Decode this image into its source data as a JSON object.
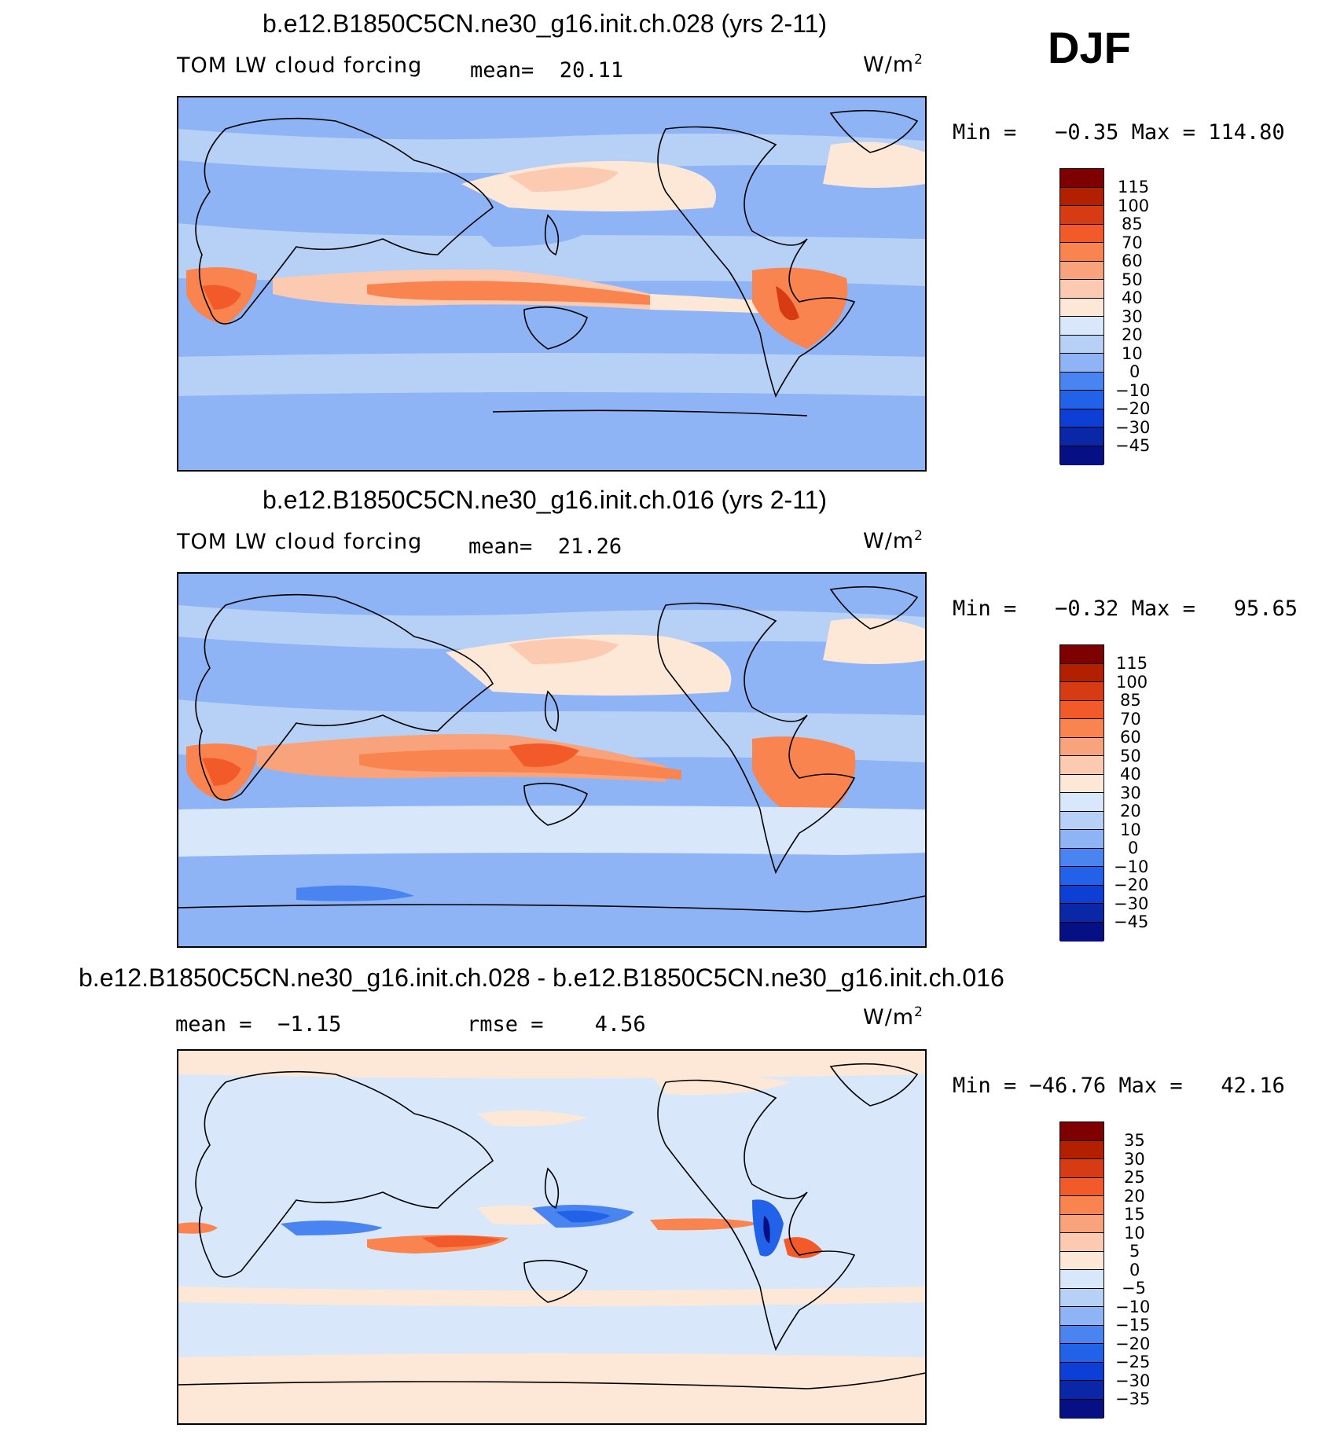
{
  "season": "DJF",
  "unit_prefix": "W/m",
  "unit_exp": "2",
  "panels": [
    {
      "title": "b.e12.B1850C5CN.ne30_g16.init.ch.028 (yrs 2-11)",
      "left_label": "TOM LW cloud forcing",
      "stat_label": "mean=",
      "stat_value": "20.11",
      "min_label": "Min =",
      "min_value": "−0.35",
      "max_label": "Max =",
      "max_value": "114.80",
      "colorbar_ticks": [
        "115",
        "100",
        "85",
        "70",
        "60",
        "50",
        "40",
        "30",
        "20",
        "10",
        "0",
        "−10",
        "−20",
        "−30",
        "−45"
      ]
    },
    {
      "title": "b.e12.B1850C5CN.ne30_g16.init.ch.016 (yrs 2-11)",
      "left_label": "TOM LW cloud forcing",
      "stat_label": "mean=",
      "stat_value": "21.26",
      "min_label": "Min =",
      "min_value": "−0.32",
      "max_label": "Max =",
      "max_value": "95.65",
      "colorbar_ticks": [
        "115",
        "100",
        "85",
        "70",
        "60",
        "50",
        "40",
        "30",
        "20",
        "10",
        "0",
        "−10",
        "−20",
        "−30",
        "−45"
      ]
    },
    {
      "title": "b.e12.B1850C5CN.ne30_g16.init.ch.028 - b.e12.B1850C5CN.ne30_g16.init.ch.016",
      "left_label": "mean =",
      "left_value": "−1.15",
      "stat_label": "rmse =",
      "stat_value": "4.56",
      "min_label": "Min =",
      "min_value": "−46.76",
      "max_label": "Max =",
      "max_value": "42.16",
      "colorbar_ticks": [
        "35",
        "30",
        "25",
        "20",
        "15",
        "10",
        "5",
        "0",
        "−5",
        "−10",
        "−15",
        "−20",
        "−25",
        "−30",
        "−35"
      ]
    }
  ],
  "colors": {
    "colorbar_abs": [
      "#7f0000",
      "#b22000",
      "#d63b14",
      "#f25a2a",
      "#f98450",
      "#f8a37c",
      "#fccab0",
      "#fde8d8",
      "#d8e8fa",
      "#b6d0f6",
      "#8fb4f5",
      "#4a84f0",
      "#2162e8",
      "#0d3fd6",
      "#0a27a8",
      "#060f83"
    ],
    "colorbar_diff": [
      "#7f0000",
      "#b22000",
      "#d63b14",
      "#f25a2a",
      "#f98450",
      "#f8a37c",
      "#fccab0",
      "#fde8d8",
      "#d8e8fa",
      "#b6d0f6",
      "#8fb4f5",
      "#4a84f0",
      "#2162e8",
      "#0d3fd6",
      "#0a27a8",
      "#060f83"
    ]
  }
}
